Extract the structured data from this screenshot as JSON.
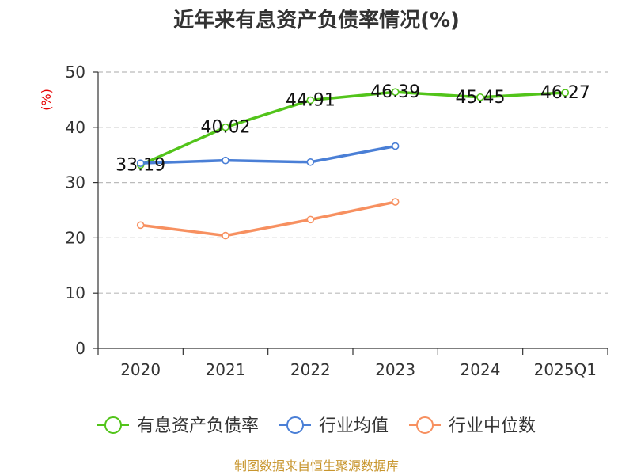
{
  "chart_data": {
    "type": "line",
    "title": "近年来有息资产负债率情况(%)",
    "y_unit": "(%)",
    "categories": [
      "2020",
      "2021",
      "2022",
      "2023",
      "2024",
      "2025Q1"
    ],
    "ylim": [
      0,
      50
    ],
    "y_ticks": [
      0,
      10,
      20,
      30,
      40,
      50
    ],
    "grid": true,
    "legend_position": "bottom",
    "series": [
      {
        "name": "有息资产负债率",
        "color": "#52c41a",
        "values": [
          33.19,
          40.02,
          44.91,
          46.39,
          45.45,
          46.27
        ],
        "labels": [
          "33.19",
          "40.02",
          "44.91",
          "46.39",
          "45.45",
          "46.27"
        ]
      },
      {
        "name": "行业均值",
        "color": "#4a7fd6",
        "values": [
          33.5,
          34.0,
          33.7,
          36.6,
          null,
          null
        ]
      },
      {
        "name": "行业中位数",
        "color": "#f79060",
        "values": [
          22.3,
          20.4,
          23.3,
          26.5,
          null,
          null
        ]
      }
    ],
    "source": "制图数据来自恒生聚源数据库"
  }
}
